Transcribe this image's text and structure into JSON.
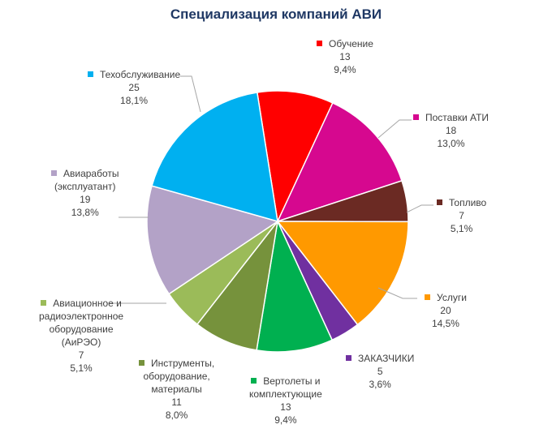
{
  "chart_data": {
    "type": "pie",
    "title": "Специализация компаний АВИ",
    "slices": [
      {
        "label": "Обучение",
        "value": 13,
        "percent": "9,4%",
        "color": "#ff0000"
      },
      {
        "label": "Поставки АТИ",
        "value": 18,
        "percent": "13,0%",
        "color": "#d6088f"
      },
      {
        "label": "Топливо",
        "value": 7,
        "percent": "5,1%",
        "color": "#6b2a23"
      },
      {
        "label": "Услуги",
        "value": 20,
        "percent": "14,5%",
        "color": "#ff9900"
      },
      {
        "label": "ЗАКАЗЧИКИ",
        "value": 5,
        "percent": "3,6%",
        "color": "#7030a0"
      },
      {
        "label": "Вертолеты и комплектующие",
        "value": 13,
        "percent": "9,4%",
        "color": "#00b050"
      },
      {
        "label": "Инструменты, оборудование, материалы",
        "value": 11,
        "percent": "8,0%",
        "color": "#76923c"
      },
      {
        "label": "Авиационное и радиоэлектронное оборудование (АиРЭО)",
        "value": 7,
        "percent": "5,1%",
        "color": "#9bbb59"
      },
      {
        "label": "Авиаработы (эксплуатант)",
        "value": 19,
        "percent": "13,8%",
        "color": "#b3a2c7"
      },
      {
        "label": "Техобслуживание",
        "value": 25,
        "percent": "18,1%",
        "color": "#00b0f0"
      }
    ]
  }
}
